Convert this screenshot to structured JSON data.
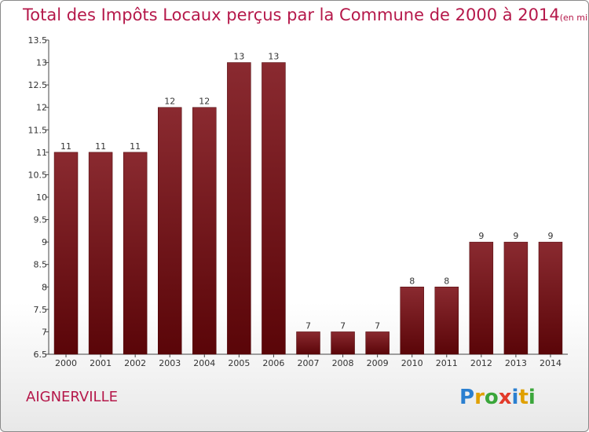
{
  "chart_data": {
    "type": "bar",
    "title": "Total des Impôts Locaux perçus par la Commune de 2000 à 2014",
    "unit": "(en milliers d'€)",
    "categories": [
      "2000",
      "2001",
      "2002",
      "2003",
      "2004",
      "2005",
      "2006",
      "2007",
      "2008",
      "2009",
      "2010",
      "2011",
      "2012",
      "2013",
      "2014"
    ],
    "values": [
      11,
      11,
      11,
      12,
      12,
      13,
      13,
      7,
      7,
      7,
      8,
      8,
      9,
      9,
      9
    ],
    "ylim": [
      6.5,
      13.5
    ],
    "yticks": [
      6.5,
      7,
      7.5,
      8,
      8.5,
      9,
      9.5,
      10,
      10.5,
      11,
      11.5,
      12,
      12.5,
      13,
      13.5
    ],
    "xlabel": "",
    "ylabel": "",
    "grid": false,
    "bar_color": "#6d0f14"
  },
  "commune": "AIGNERVILLE",
  "logo": {
    "parts": [
      "P",
      "r",
      "o",
      "x",
      "i",
      "t",
      "i"
    ]
  }
}
